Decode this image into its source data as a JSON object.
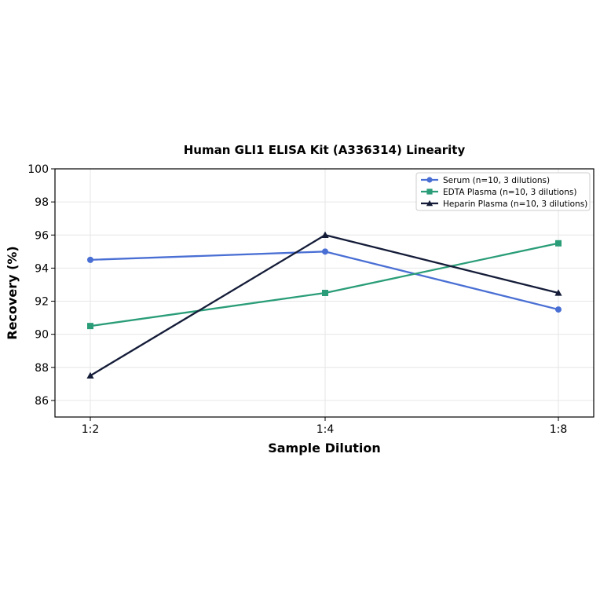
{
  "chart_data": {
    "type": "line",
    "title": "Human GLI1 ELISA Kit (A336314) Linearity",
    "xlabel": "Sample Dilution",
    "ylabel": "Recovery (%)",
    "categories": [
      "1:2",
      "1:4",
      "1:8"
    ],
    "ylim": [
      85,
      100
    ],
    "yticks": [
      86,
      88,
      90,
      92,
      94,
      96,
      98,
      100
    ],
    "grid": true,
    "legend_position": "top-right",
    "series": [
      {
        "name": "Serum (n=10, 3 dilutions)",
        "values": [
          94.5,
          95.0,
          91.5
        ],
        "color": "#4a6fd4",
        "marker": "circle"
      },
      {
        "name": "EDTA Plasma (n=10, 3 dilutions)",
        "values": [
          90.5,
          92.5,
          95.5
        ],
        "color": "#2a9d78",
        "marker": "square"
      },
      {
        "name": "Heparin Plasma (n=10, 3 dilutions)",
        "values": [
          87.5,
          96.0,
          92.5
        ],
        "color": "#141c38",
        "marker": "triangle"
      }
    ]
  }
}
